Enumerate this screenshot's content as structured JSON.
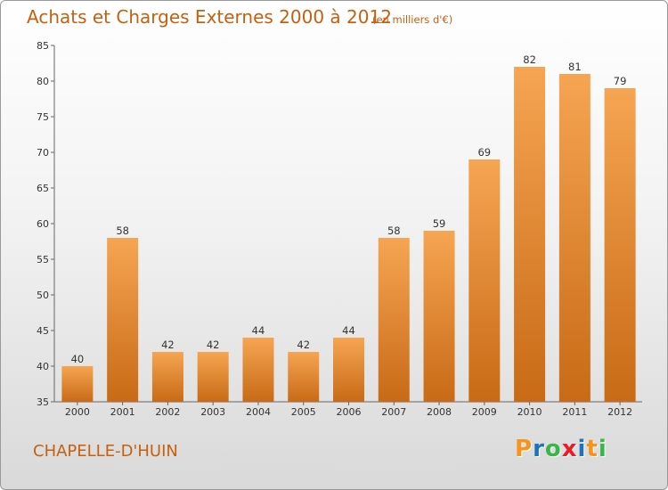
{
  "header": {
    "title": "Achats et Charges Externes 2000 à 2012",
    "subtitle": "(en milliers d'€)"
  },
  "footer": {
    "commune": "CHAPELLE-D'HUIN",
    "logo": "Proxiti"
  },
  "colors": {
    "accent": "#c5600f",
    "bar_top": "#f6a552",
    "bar_bottom": "#c86a16",
    "logo_letters": [
      "#f7941d",
      "#1c75bc",
      "#39b54a",
      "#ed1c24",
      "#1c75bc",
      "#f7941d",
      "#39b54a"
    ]
  },
  "chart_data": {
    "type": "bar",
    "title": "Achats et Charges Externes 2000 à 2012",
    "subtitle": "(en milliers d'€)",
    "categories": [
      "2000",
      "2001",
      "2002",
      "2003",
      "2004",
      "2005",
      "2006",
      "2007",
      "2008",
      "2009",
      "2010",
      "2011",
      "2012"
    ],
    "values": [
      40,
      58,
      42,
      42,
      44,
      42,
      44,
      58,
      59,
      69,
      82,
      81,
      79
    ],
    "xlabel": "",
    "ylabel": "",
    "ylim": [
      35,
      85
    ],
    "yticks": [
      35,
      40,
      45,
      50,
      55,
      60,
      65,
      70,
      75,
      80,
      85
    ],
    "grid": false,
    "legend": "none",
    "data_labels": true
  }
}
